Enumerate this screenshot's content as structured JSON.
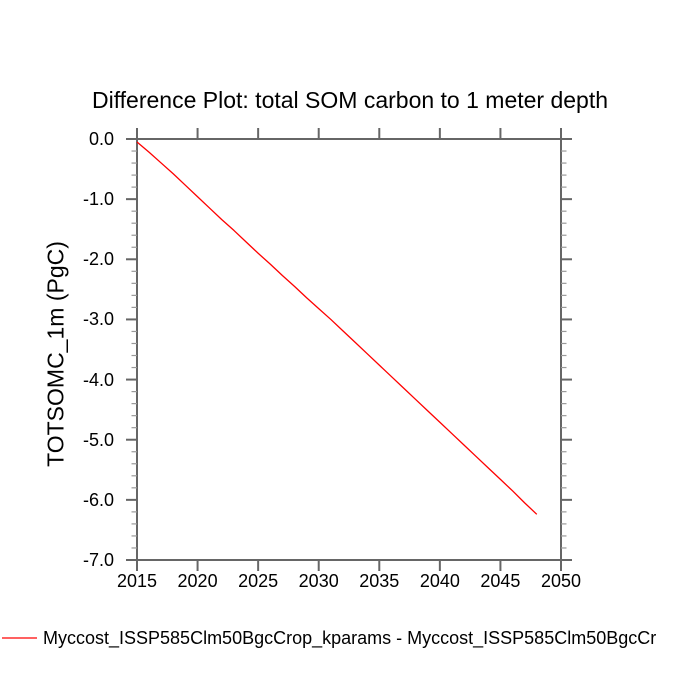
{
  "chart_data": {
    "type": "line",
    "title": "Difference Plot: total SOM carbon to 1 meter depth",
    "xlabel": "",
    "ylabel": "TOTSOMC_1m (PgC)",
    "xlim": [
      2015,
      2050
    ],
    "ylim": [
      -7.0,
      0.0
    ],
    "xticks": [
      2015,
      2020,
      2025,
      2030,
      2035,
      2040,
      2045,
      2050
    ],
    "yticks": [
      0.0,
      -1.0,
      -2.0,
      -3.0,
      -4.0,
      -5.0,
      -6.0,
      -7.0
    ],
    "ytick_labels": [
      "0.0",
      "-1.0",
      "-2.0",
      "-3.0",
      "-4.0",
      "-5.0",
      "-6.0",
      "-7.0"
    ],
    "y_minor_step": 0.2,
    "grid": false,
    "legend_position": "bottom-left",
    "axis_color": "#666666",
    "minor_tick_color": "#999999",
    "series": [
      {
        "name": "Myccost_ISSP585Clm50BgcCrop_kparams - Myccost_ISSP585Clm50BgcCr",
        "color": "#ff0000",
        "x": [
          2015,
          2016,
          2017,
          2018,
          2019,
          2020,
          2021,
          2022,
          2023,
          2024,
          2025,
          2026,
          2027,
          2028,
          2029,
          2030,
          2031,
          2032,
          2033,
          2034,
          2035,
          2036,
          2037,
          2038,
          2039,
          2040,
          2041,
          2042,
          2043,
          2044,
          2045,
          2046,
          2047,
          2048
        ],
        "values": [
          -0.05,
          -0.22,
          -0.4,
          -0.58,
          -0.77,
          -0.96,
          -1.15,
          -1.34,
          -1.52,
          -1.71,
          -1.9,
          -2.08,
          -2.27,
          -2.45,
          -2.64,
          -2.82,
          -3.0,
          -3.19,
          -3.38,
          -3.57,
          -3.76,
          -3.95,
          -4.14,
          -4.33,
          -4.52,
          -4.71,
          -4.9,
          -5.09,
          -5.28,
          -5.47,
          -5.66,
          -5.85,
          -6.05,
          -6.24
        ]
      }
    ]
  }
}
